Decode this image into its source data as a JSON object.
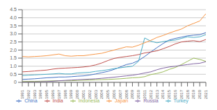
{
  "chart_data": {
    "type": "line",
    "x": [
      1991,
      1992,
      1993,
      1994,
      1995,
      1996,
      1997,
      1998,
      1999,
      2000,
      2001,
      2002,
      2003,
      2004,
      2005,
      2006,
      2007,
      2008,
      2009,
      2010,
      2011,
      2012,
      2013,
      2014,
      2015,
      2016,
      2017,
      2018,
      2019,
      2020,
      2021
    ],
    "series": [
      {
        "name": "China",
        "color": "#4472c4",
        "values": [
          0.18,
          0.2,
          0.22,
          0.25,
          0.28,
          0.3,
          0.33,
          0.33,
          0.35,
          0.38,
          0.4,
          0.45,
          0.52,
          0.6,
          0.68,
          0.8,
          0.95,
          1.1,
          1.18,
          1.35,
          1.6,
          1.88,
          2.15,
          2.4,
          2.62,
          2.72,
          2.8,
          2.88,
          2.92,
          2.95,
          3.08
        ]
      },
      {
        "name": "India",
        "color": "#c0504d",
        "values": [
          0.65,
          0.67,
          0.7,
          0.73,
          0.76,
          0.82,
          0.86,
          0.88,
          0.9,
          0.92,
          0.95,
          1.0,
          1.08,
          1.2,
          1.35,
          1.48,
          1.55,
          1.6,
          1.65,
          1.72,
          1.82,
          1.88,
          1.95,
          2.08,
          2.22,
          2.38,
          2.5,
          2.55,
          2.58,
          2.52,
          2.65
        ]
      },
      {
        "name": "Indonesia",
        "color": "#9bbb59",
        "values": [
          0.05,
          0.06,
          0.06,
          0.07,
          0.08,
          0.09,
          0.1,
          0.1,
          0.1,
          0.12,
          0.13,
          0.14,
          0.16,
          0.17,
          0.18,
          0.2,
          0.22,
          0.25,
          0.28,
          0.3,
          0.35,
          0.48,
          0.55,
          0.65,
          0.8,
          0.92,
          1.1,
          1.3,
          1.5,
          1.42,
          1.3
        ]
      },
      {
        "name": "Russia",
        "color": "#8064a2",
        "values": [
          0.02,
          0.03,
          0.03,
          0.04,
          0.05,
          0.07,
          0.1,
          0.12,
          0.14,
          0.16,
          0.18,
          0.2,
          0.22,
          0.25,
          0.28,
          0.32,
          0.36,
          0.4,
          0.44,
          0.5,
          0.58,
          0.65,
          0.78,
          0.88,
          0.95,
          1.0,
          1.05,
          1.1,
          1.15,
          1.18,
          1.28
        ]
      },
      {
        "name": "Turkey",
        "color": "#4bacc6",
        "values": [
          0.42,
          0.44,
          0.46,
          0.48,
          0.5,
          0.52,
          0.55,
          0.52,
          0.52,
          0.58,
          0.6,
          0.62,
          0.68,
          0.72,
          0.78,
          0.85,
          0.9,
          0.95,
          1.0,
          1.3,
          2.75,
          2.55,
          2.45,
          2.52,
          2.58,
          2.62,
          2.72,
          2.82,
          2.78,
          2.82,
          2.95
        ]
      },
      {
        "name": "Japan",
        "color": "#f79646",
        "values": [
          1.6,
          1.58,
          1.6,
          1.62,
          1.65,
          1.7,
          1.75,
          1.65,
          1.62,
          1.65,
          1.65,
          1.7,
          1.75,
          1.8,
          1.9,
          2.0,
          2.1,
          2.2,
          2.18,
          2.3,
          2.45,
          2.6,
          2.78,
          2.9,
          3.05,
          3.18,
          3.3,
          3.5,
          3.65,
          3.8,
          4.25
        ]
      }
    ],
    "xlim": [
      1991,
      2021
    ],
    "xticks": [
      1991,
      1992,
      1993,
      1994,
      1995,
      1996,
      1997,
      1998,
      1999,
      2000,
      2001,
      2002,
      2003,
      2004,
      2005,
      2006,
      2007,
      2008,
      2009,
      2010,
      2011,
      2012,
      2013,
      2014,
      2015,
      2016,
      2017,
      2018,
      2019,
      2020,
      2021
    ],
    "ylim": [
      0,
      4.5
    ],
    "yticks": [
      0,
      0.5,
      {
        "value": 1,
        "label": "1.0"
      },
      1.5,
      {
        "value": 2,
        "label": "2.0"
      },
      2.5,
      {
        "value": 3,
        "label": "3.0"
      },
      3.5,
      {
        "value": 4,
        "label": "4.0"
      },
      4.5
    ],
    "grid": true,
    "legend": "bottom"
  }
}
